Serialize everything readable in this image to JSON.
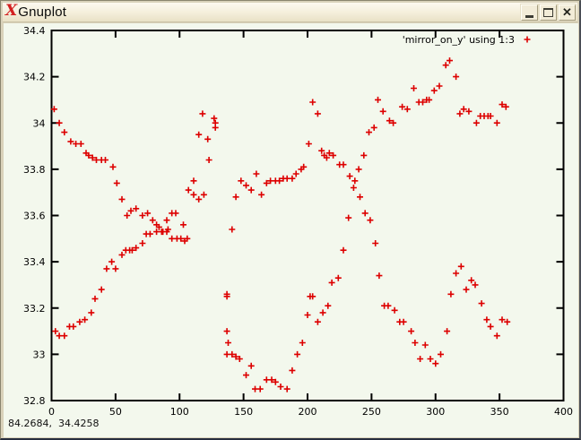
{
  "window": {
    "title": "Gnuplot",
    "icon_glyph": "X",
    "controls": {
      "minimize": "minimize",
      "maximize": "maximize",
      "close": "close",
      "close_glyph": "✕"
    }
  },
  "status_text": "84.2684,  34.4258",
  "colors": {
    "point": "#dd0000",
    "canvas_bg": "#f3f8ed",
    "frame": "#d9d2ba",
    "axis": "#000000"
  },
  "chart_data": {
    "type": "scatter",
    "title": "",
    "xlabel": "",
    "ylabel": "",
    "xlim": [
      0,
      400
    ],
    "ylim": [
      32.8,
      34.4
    ],
    "xticks": [
      0,
      50,
      100,
      150,
      200,
      250,
      300,
      350,
      400
    ],
    "yticks": [
      32.8,
      33,
      33.2,
      33.4,
      33.6,
      33.8,
      34,
      34.2,
      34.4
    ],
    "grid": false,
    "legend": {
      "label": "'mirror_on_y' using 1:3",
      "position": "top-right",
      "marker": "plus"
    },
    "marker": "plus",
    "points": [
      [
        2,
        34.06
      ],
      [
        6,
        34.0
      ],
      [
        10,
        33.96
      ],
      [
        15,
        33.92
      ],
      [
        19,
        33.91
      ],
      [
        23,
        33.91
      ],
      [
        27,
        33.87
      ],
      [
        29,
        33.86
      ],
      [
        32,
        33.85
      ],
      [
        35,
        33.84
      ],
      [
        39,
        33.84
      ],
      [
        42,
        33.84
      ],
      [
        48,
        33.81
      ],
      [
        51,
        33.74
      ],
      [
        55,
        33.67
      ],
      [
        59,
        33.6
      ],
      [
        62,
        33.62
      ],
      [
        66,
        33.63
      ],
      [
        71,
        33.6
      ],
      [
        75,
        33.61
      ],
      [
        79,
        33.58
      ],
      [
        82,
        33.56
      ],
      [
        84,
        33.55
      ],
      [
        86,
        33.53
      ],
      [
        90,
        33.58
      ],
      [
        91,
        33.54
      ],
      [
        94,
        33.61
      ],
      [
        97,
        33.61
      ],
      [
        103,
        33.56
      ],
      [
        3,
        33.1
      ],
      [
        6,
        33.08
      ],
      [
        10,
        33.08
      ],
      [
        14,
        33.12
      ],
      [
        17,
        33.12
      ],
      [
        22,
        33.14
      ],
      [
        26,
        33.15
      ],
      [
        31,
        33.18
      ],
      [
        34,
        33.24
      ],
      [
        39,
        33.28
      ],
      [
        43,
        33.37
      ],
      [
        47,
        33.4
      ],
      [
        50,
        33.37
      ],
      [
        55,
        33.43
      ],
      [
        58,
        33.45
      ],
      [
        61,
        33.45
      ],
      [
        63,
        33.45
      ],
      [
        66,
        33.46
      ],
      [
        71,
        33.48
      ],
      [
        74,
        33.52
      ],
      [
        77,
        33.52
      ],
      [
        82,
        33.53
      ],
      [
        87,
        33.53
      ],
      [
        90,
        33.53
      ],
      [
        94,
        33.5
      ],
      [
        98,
        33.5
      ],
      [
        101,
        33.5
      ],
      [
        104,
        33.49
      ],
      [
        106,
        33.5
      ],
      [
        107,
        33.71
      ],
      [
        111,
        33.75
      ],
      [
        111,
        33.69
      ],
      [
        115,
        33.67
      ],
      [
        119,
        33.69
      ],
      [
        123,
        33.84
      ],
      [
        115,
        33.95
      ],
      [
        118,
        34.04
      ],
      [
        122,
        33.93
      ],
      [
        127,
        34.02
      ],
      [
        128,
        34.0
      ],
      [
        128,
        33.98
      ],
      [
        137,
        33.26
      ],
      [
        137,
        33.25
      ],
      [
        137,
        33.1
      ],
      [
        138,
        33.05
      ],
      [
        137,
        33.0
      ],
      [
        141,
        33.0
      ],
      [
        144,
        32.99
      ],
      [
        147,
        32.98
      ],
      [
        152,
        32.91
      ],
      [
        156,
        32.95
      ],
      [
        159,
        32.85
      ],
      [
        163,
        32.85
      ],
      [
        168,
        32.89
      ],
      [
        172,
        32.89
      ],
      [
        175,
        32.88
      ],
      [
        179,
        32.86
      ],
      [
        184,
        32.85
      ],
      [
        188,
        32.93
      ],
      [
        192,
        33.0
      ],
      [
        196,
        33.05
      ],
      [
        200,
        33.17
      ],
      [
        202,
        33.25
      ],
      [
        204,
        33.25
      ],
      [
        208,
        33.14
      ],
      [
        212,
        33.18
      ],
      [
        216,
        33.21
      ],
      [
        219,
        33.31
      ],
      [
        224,
        33.33
      ],
      [
        228,
        33.45
      ],
      [
        232,
        33.59
      ],
      [
        141,
        33.54
      ],
      [
        144,
        33.68
      ],
      [
        148,
        33.75
      ],
      [
        152,
        33.73
      ],
      [
        156,
        33.71
      ],
      [
        160,
        33.78
      ],
      [
        164,
        33.69
      ],
      [
        168,
        33.74
      ],
      [
        171,
        33.75
      ],
      [
        175,
        33.75
      ],
      [
        178,
        33.75
      ],
      [
        181,
        33.76
      ],
      [
        184,
        33.76
      ],
      [
        188,
        33.76
      ],
      [
        191,
        33.78
      ],
      [
        195,
        33.8
      ],
      [
        197,
        33.81
      ],
      [
        201,
        33.91
      ],
      [
        204,
        34.09
      ],
      [
        208,
        34.04
      ],
      [
        211,
        33.88
      ],
      [
        213,
        33.86
      ],
      [
        215,
        33.85
      ],
      [
        217,
        33.87
      ],
      [
        220,
        33.86
      ],
      [
        225,
        33.82
      ],
      [
        228,
        33.82
      ],
      [
        233,
        33.77
      ],
      [
        236,
        33.72
      ],
      [
        237,
        33.75
      ],
      [
        241,
        33.68
      ],
      [
        245,
        33.61
      ],
      [
        249,
        33.58
      ],
      [
        253,
        33.48
      ],
      [
        256,
        33.34
      ],
      [
        260,
        33.21
      ],
      [
        263,
        33.21
      ],
      [
        268,
        33.19
      ],
      [
        272,
        33.14
      ],
      [
        275,
        33.14
      ],
      [
        281,
        33.1
      ],
      [
        284,
        33.05
      ],
      [
        288,
        32.98
      ],
      [
        292,
        33.04
      ],
      [
        296,
        32.98
      ],
      [
        300,
        32.96
      ],
      [
        304,
        33.0
      ],
      [
        309,
        33.1
      ],
      [
        312,
        33.26
      ],
      [
        316,
        33.35
      ],
      [
        320,
        33.38
      ],
      [
        324,
        33.28
      ],
      [
        328,
        33.32
      ],
      [
        331,
        33.3
      ],
      [
        336,
        33.22
      ],
      [
        340,
        33.15
      ],
      [
        343,
        33.12
      ],
      [
        348,
        33.08
      ],
      [
        352,
        33.15
      ],
      [
        356,
        33.14
      ],
      [
        240,
        33.8
      ],
      [
        244,
        33.86
      ],
      [
        248,
        33.96
      ],
      [
        252,
        33.98
      ],
      [
        255,
        34.1
      ],
      [
        259,
        34.05
      ],
      [
        264,
        34.01
      ],
      [
        267,
        34.0
      ],
      [
        274,
        34.07
      ],
      [
        278,
        34.06
      ],
      [
        283,
        34.15
      ],
      [
        287,
        34.09
      ],
      [
        290,
        34.09
      ],
      [
        293,
        34.1
      ],
      [
        295,
        34.1
      ],
      [
        299,
        34.14
      ],
      [
        303,
        34.16
      ],
      [
        308,
        34.25
      ],
      [
        311,
        34.27
      ],
      [
        316,
        34.2
      ],
      [
        319,
        34.04
      ],
      [
        322,
        34.06
      ],
      [
        326,
        34.05
      ],
      [
        332,
        34.0
      ],
      [
        335,
        34.03
      ],
      [
        338,
        34.03
      ],
      [
        341,
        34.03
      ],
      [
        343,
        34.03
      ],
      [
        348,
        34.0
      ],
      [
        352,
        34.08
      ],
      [
        355,
        34.07
      ]
    ]
  }
}
